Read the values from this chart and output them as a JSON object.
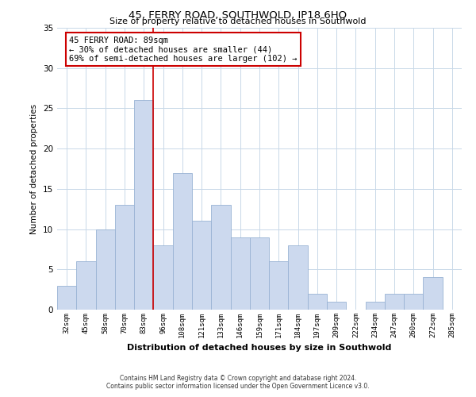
{
  "title": "45, FERRY ROAD, SOUTHWOLD, IP18 6HQ",
  "subtitle": "Size of property relative to detached houses in Southwold",
  "xlabel": "Distribution of detached houses by size in Southwold",
  "ylabel": "Number of detached properties",
  "bar_labels": [
    "32sqm",
    "45sqm",
    "58sqm",
    "70sqm",
    "83sqm",
    "96sqm",
    "108sqm",
    "121sqm",
    "133sqm",
    "146sqm",
    "159sqm",
    "171sqm",
    "184sqm",
    "197sqm",
    "209sqm",
    "222sqm",
    "234sqm",
    "247sqm",
    "260sqm",
    "272sqm",
    "285sqm"
  ],
  "bar_values": [
    3,
    6,
    10,
    13,
    26,
    8,
    17,
    11,
    13,
    9,
    9,
    6,
    8,
    2,
    1,
    0,
    1,
    2,
    2,
    4,
    0
  ],
  "bar_color": "#ccd9ee",
  "bar_edgecolor": "#99b3d4",
  "vline_x": 4.5,
  "vline_color": "#cc0000",
  "annotation_title": "45 FERRY ROAD: 89sqm",
  "annotation_line1": "← 30% of detached houses are smaller (44)",
  "annotation_line2": "69% of semi-detached houses are larger (102) →",
  "annotation_box_edgecolor": "#cc0000",
  "annotation_box_facecolor": "#ffffff",
  "ylim": [
    0,
    35
  ],
  "yticks": [
    0,
    5,
    10,
    15,
    20,
    25,
    30,
    35
  ],
  "footer_line1": "Contains HM Land Registry data © Crown copyright and database right 2024.",
  "footer_line2": "Contains public sector information licensed under the Open Government Licence v3.0.",
  "background_color": "#ffffff",
  "grid_color": "#c8d8e8"
}
